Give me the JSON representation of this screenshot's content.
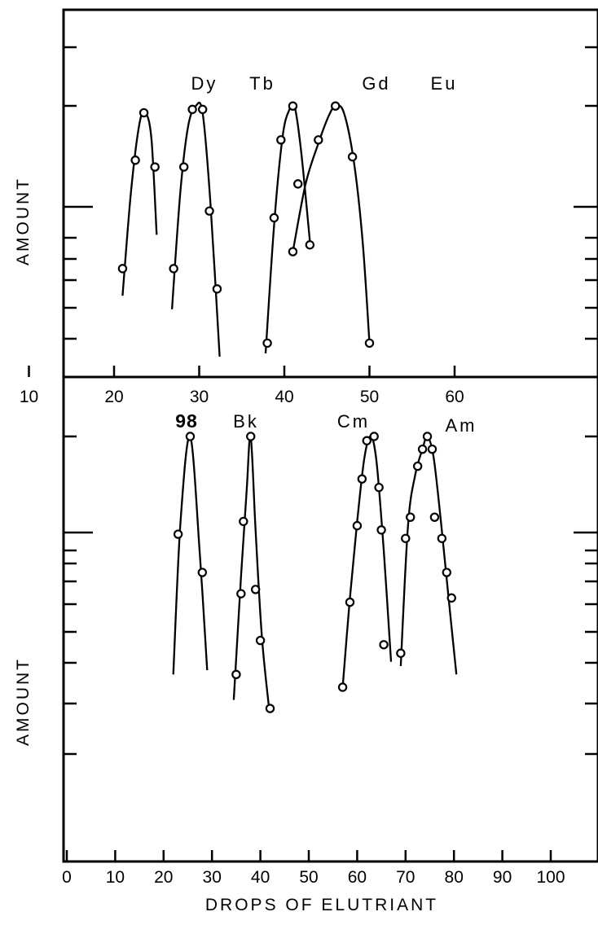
{
  "chart_data": [
    {
      "type": "line",
      "panel": "top",
      "ylabel": "AMOUNT",
      "xlim": [
        10,
        64
      ],
      "x_ticks": [
        10,
        20,
        30,
        40,
        50,
        60
      ],
      "y_axis_numbers_shown": false,
      "grid": false,
      "series": [
        {
          "name": "Dy",
          "points": [
            [
              21.0,
              0.32
            ],
            [
              22.5,
              0.64
            ],
            [
              23.5,
              0.78
            ],
            [
              24.8,
              0.62
            ]
          ],
          "curve": [
            [
              21.0,
              0.24
            ],
            [
              22.0,
              0.55
            ],
            [
              23.0,
              0.75
            ],
            [
              23.7,
              0.78
            ],
            [
              24.4,
              0.7
            ],
            [
              25.0,
              0.42
            ]
          ]
        },
        {
          "name": "Tb",
          "points": [
            [
              27.0,
              0.32
            ],
            [
              28.2,
              0.62
            ],
            [
              29.2,
              0.79
            ],
            [
              30.4,
              0.79
            ],
            [
              31.2,
              0.49
            ],
            [
              32.1,
              0.26
            ]
          ],
          "curve": [
            [
              26.8,
              0.2
            ],
            [
              27.8,
              0.55
            ],
            [
              28.7,
              0.74
            ],
            [
              29.6,
              0.8
            ],
            [
              30.4,
              0.78
            ],
            [
              31.3,
              0.52
            ],
            [
              32.4,
              0.06
            ]
          ]
        },
        {
          "name": "Gd",
          "points": [
            [
              38.0,
              0.1
            ],
            [
              38.8,
              0.47
            ],
            [
              39.6,
              0.7
            ],
            [
              41.0,
              0.8
            ],
            [
              41.6,
              0.57
            ],
            [
              43.0,
              0.39
            ]
          ],
          "curve": [
            [
              37.8,
              0.07
            ],
            [
              38.8,
              0.45
            ],
            [
              39.8,
              0.71
            ],
            [
              40.6,
              0.79
            ],
            [
              41.2,
              0.8
            ],
            [
              42.0,
              0.66
            ],
            [
              43.0,
              0.4
            ]
          ]
        },
        {
          "name": "Eu",
          "points": [
            [
              41.0,
              0.37
            ],
            [
              44.0,
              0.7
            ],
            [
              46.0,
              0.8
            ],
            [
              48.0,
              0.65
            ],
            [
              50.0,
              0.1
            ]
          ],
          "curve": [
            [
              41.0,
              0.37
            ],
            [
              42.5,
              0.57
            ],
            [
              44.0,
              0.69
            ],
            [
              45.2,
              0.77
            ],
            [
              46.0,
              0.8
            ],
            [
              47.0,
              0.78
            ],
            [
              48.2,
              0.63
            ],
            [
              49.2,
              0.4
            ],
            [
              50.0,
              0.1
            ]
          ]
        }
      ]
    },
    {
      "type": "line",
      "panel": "bottom",
      "xlabel": "DROPS OF ELUTRIANT",
      "ylabel": "AMOUNT",
      "xlim": [
        0,
        108
      ],
      "x_ticks": [
        0,
        10,
        20,
        30,
        40,
        50,
        60,
        70,
        80,
        90,
        100
      ],
      "y_axis_numbers_shown": false,
      "grid": false,
      "series": [
        {
          "name": "98",
          "points": [
            [
              23.0,
              0.77
            ],
            [
              25.5,
              1.0
            ],
            [
              28.0,
              0.68
            ]
          ],
          "curve": [
            [
              22.0,
              0.44
            ],
            [
              23.5,
              0.8
            ],
            [
              25.5,
              1.0
            ],
            [
              27.5,
              0.72
            ],
            [
              29.0,
              0.45
            ]
          ]
        },
        {
          "name": "Bk",
          "points": [
            [
              35.0,
              0.44
            ],
            [
              36.0,
              0.63
            ],
            [
              36.5,
              0.8
            ],
            [
              38.0,
              1.0
            ],
            [
              39.0,
              0.64
            ],
            [
              40.0,
              0.52
            ],
            [
              42.0,
              0.36
            ]
          ],
          "curve": [
            [
              34.5,
              0.38
            ],
            [
              36.0,
              0.67
            ],
            [
              37.2,
              0.88
            ],
            [
              38.0,
              1.0
            ],
            [
              39.0,
              0.78
            ],
            [
              40.3,
              0.53
            ],
            [
              41.7,
              0.37
            ]
          ]
        },
        {
          "name": "Cm",
          "points": [
            [
              57.0,
              0.41
            ],
            [
              58.5,
              0.61
            ],
            [
              60.0,
              0.79
            ],
            [
              61.0,
              0.9
            ],
            [
              62.0,
              0.99
            ],
            [
              63.5,
              1.0
            ],
            [
              64.5,
              0.88
            ],
            [
              65.0,
              0.78
            ],
            [
              65.5,
              0.51
            ]
          ],
          "curve": [
            [
              57.0,
              0.41
            ],
            [
              58.5,
              0.62
            ],
            [
              60.0,
              0.8
            ],
            [
              61.5,
              0.95
            ],
            [
              62.8,
              1.0
            ],
            [
              64.0,
              0.94
            ],
            [
              65.5,
              0.73
            ],
            [
              67.0,
              0.47
            ]
          ]
        },
        {
          "name": "Am",
          "points": [
            [
              69.0,
              0.49
            ],
            [
              70.0,
              0.76
            ],
            [
              71.0,
              0.81
            ],
            [
              72.5,
              0.93
            ],
            [
              73.5,
              0.97
            ],
            [
              74.5,
              1.0
            ],
            [
              75.5,
              0.97
            ],
            [
              76.0,
              0.81
            ],
            [
              77.5,
              0.76
            ],
            [
              78.5,
              0.68
            ],
            [
              79.5,
              0.62
            ]
          ],
          "curve": [
            [
              69.0,
              0.46
            ],
            [
              70.5,
              0.79
            ],
            [
              72.0,
              0.91
            ],
            [
              73.5,
              0.97
            ],
            [
              74.5,
              1.0
            ],
            [
              75.8,
              0.95
            ],
            [
              77.3,
              0.8
            ],
            [
              78.8,
              0.63
            ],
            [
              80.5,
              0.44
            ]
          ]
        }
      ]
    }
  ]
}
